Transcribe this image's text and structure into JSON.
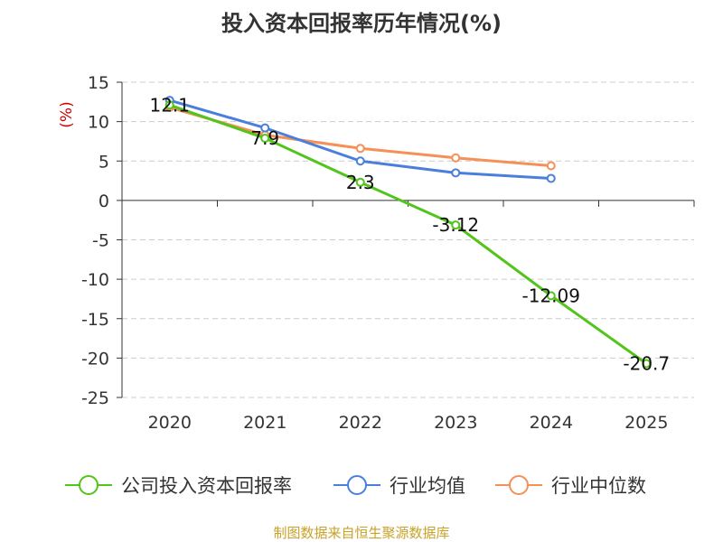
{
  "chart_data": {
    "type": "line",
    "title": "投入资本回报率历年情况(%)",
    "ylabel": "(%)",
    "xlabel": "",
    "categories": [
      "2020",
      "2021",
      "2022",
      "2023",
      "2024",
      "2025"
    ],
    "ylim": [
      -25,
      15
    ],
    "yticks": [
      15,
      10,
      5,
      0,
      -5,
      -10,
      -15,
      -20,
      -25
    ],
    "grid": true,
    "legend_position": "bottom",
    "series": [
      {
        "name": "公司投入资本回报率",
        "color": "#52c41a",
        "values": [
          12.1,
          7.9,
          2.3,
          -3.12,
          -12.09,
          -20.7
        ],
        "labels": [
          "12.1",
          "7.9",
          "2.3",
          "-3.12",
          "-12.09",
          "-20.7"
        ]
      },
      {
        "name": "行业均值",
        "color": "#4a7fdc",
        "values": [
          12.7,
          9.2,
          5.0,
          3.5,
          2.8,
          null
        ]
      },
      {
        "name": "行业中位数",
        "color": "#f59057",
        "values": [
          11.8,
          8.3,
          6.6,
          5.4,
          4.4,
          null
        ]
      }
    ],
    "source": "制图数据来自恒生聚源数据库"
  }
}
